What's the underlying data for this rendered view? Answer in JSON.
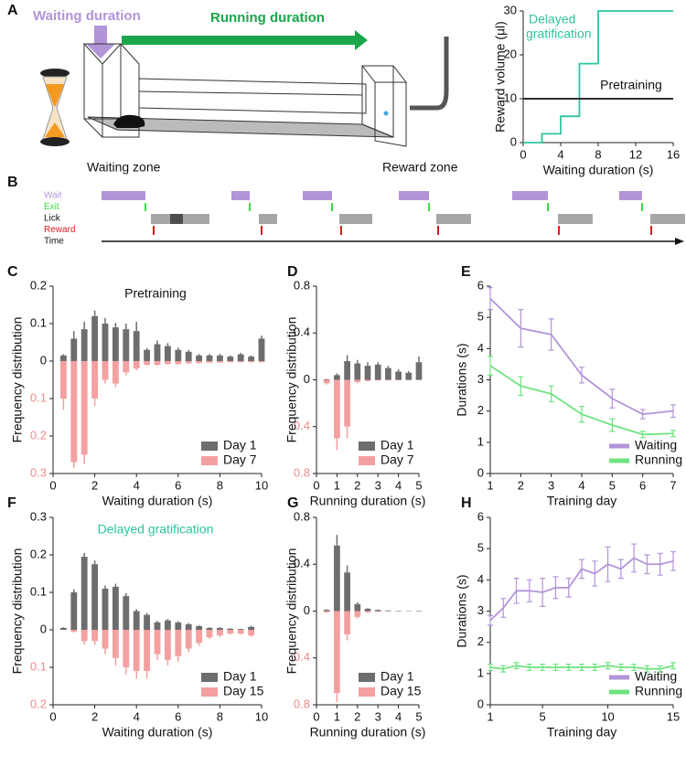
{
  "panel_labels": [
    "A",
    "B",
    "C",
    "D",
    "E",
    "F",
    "G",
    "H"
  ],
  "diagram": {
    "waiting_duration": "Waiting duration",
    "running_duration": "Running  duration",
    "waiting_zone": "Waiting zone",
    "reward_zone": "Reward zone"
  },
  "raster": {
    "labels": [
      "Wait",
      "Exit",
      "Lick",
      "Reward",
      "Time"
    ],
    "colors": [
      "#b294d8",
      "#3ddc4c",
      "#111111",
      "#d81e1e",
      "#111111"
    ]
  },
  "chart_data": [
    {
      "type": "line",
      "x_label": "Waiting duration (s)",
      "y_label": "Reward volume (µl)",
      "x": [
        0,
        2,
        2,
        4,
        4,
        6,
        6,
        8,
        8,
        16
      ],
      "series": [
        {
          "color": "#2ec4a0",
          "values": [
            0,
            0,
            2,
            2,
            6,
            6,
            18,
            18,
            30,
            30
          ]
        },
        {
          "color": "#111111",
          "values": [
            10,
            10,
            10,
            10,
            10,
            10,
            10,
            10,
            10,
            10
          ]
        }
      ],
      "annotations": [
        {
          "text": "Delayed",
          "color": "#2ec4a0"
        },
        {
          "text": "gratification",
          "color": "#2ec4a0"
        },
        {
          "text": "Pretraining",
          "color": "#111111"
        }
      ],
      "xlim": [
        0,
        16
      ],
      "ylim": [
        0,
        30
      ],
      "xticks": [
        0,
        4,
        8,
        12,
        16
      ],
      "yticks": [
        0,
        10,
        20,
        30
      ]
    },
    {
      "type": "bar",
      "x_label": "Waiting duration (s)",
      "y_label": "Frequency distribution",
      "annotations": [
        {
          "text": "Pretraining",
          "color": "#111111"
        }
      ],
      "x": [
        0.5,
        1,
        1.5,
        2,
        2.5,
        3,
        3.5,
        4,
        4.5,
        5,
        5.5,
        6,
        6.5,
        7,
        7.5,
        8,
        8.5,
        9,
        9.5,
        10
      ],
      "series": [
        {
          "name": "Day 1",
          "color": "#6d6d6d",
          "values": [
            0.015,
            0.06,
            0.085,
            0.12,
            0.1,
            0.09,
            0.085,
            0.08,
            0.03,
            0.045,
            0.04,
            0.03,
            0.025,
            0.015,
            0.015,
            0.015,
            0.012,
            0.018,
            0.012,
            0.06
          ],
          "errors": [
            0.004,
            0.02,
            0.02,
            0.015,
            0.015,
            0.012,
            0.015,
            0.025,
            0.005,
            0.01,
            0.008,
            0.006,
            0.005,
            0.004,
            0.004,
            0.004,
            0.003,
            0.004,
            0.003,
            0.008
          ]
        },
        {
          "name": "Day 7",
          "color": "#f4a0a0",
          "values": [
            -0.1,
            -0.27,
            -0.25,
            -0.1,
            -0.05,
            -0.06,
            -0.03,
            -0.02,
            -0.01,
            -0.01,
            -0.008,
            -0.008,
            -0.006,
            -0.005,
            -0.004,
            -0.004,
            -0.003,
            -0.003,
            -0.003,
            -0.003
          ],
          "errors": [
            0.03,
            0.015,
            0.025,
            0.02,
            0.01,
            0.01,
            0.008,
            0.005,
            0.003,
            0.003,
            0.002,
            0.002,
            0.002,
            0.002,
            0.001,
            0.001,
            0.001,
            0.001,
            0.001,
            0.001
          ]
        }
      ],
      "legend": "lower right",
      "negative_tick_color": "#f08a8a",
      "xlim": [
        0,
        10
      ],
      "ylim": [
        -0.3,
        0.2
      ],
      "xticks": [
        0,
        2,
        4,
        6,
        8,
        10
      ],
      "yticks": [
        0.2,
        0.1,
        0,
        {
          "value": -0.1,
          "label": "0.1"
        },
        {
          "value": -0.2,
          "label": "0.2"
        },
        {
          "value": -0.3,
          "label": "0.3"
        }
      ]
    },
    {
      "type": "bar",
      "x_label": "Running duration (s)",
      "y_label": "Frequency distribution",
      "x": [
        0.5,
        1,
        1.5,
        2,
        2.5,
        3,
        3.5,
        4,
        4.5,
        5
      ],
      "series": [
        {
          "name": "Day 1",
          "color": "#6d6d6d",
          "values": [
            0.005,
            0.04,
            0.16,
            0.14,
            0.12,
            0.13,
            0.1,
            0.07,
            0.06,
            0.15
          ],
          "errors": [
            0.003,
            0.015,
            0.05,
            0.03,
            0.03,
            0.02,
            0.02,
            0.02,
            0.015,
            0.05
          ]
        },
        {
          "name": "Day 7",
          "color": "#f4a0a0",
          "values": [
            -0.03,
            -0.5,
            -0.4,
            -0.02,
            -0.01,
            -0.005,
            -0.003,
            -0.003,
            -0.002,
            -0.002
          ],
          "errors": [
            0.01,
            0.1,
            0.1,
            0.01,
            0.005,
            0.003,
            0.002,
            0.002,
            0.001,
            0.001
          ]
        }
      ],
      "legend": "lower right",
      "negative_tick_color": "#f08a8a",
      "xlim": [
        0,
        5
      ],
      "ylim": [
        -0.8,
        0.8
      ],
      "xticks": [
        0,
        1,
        2,
        3,
        4,
        5
      ],
      "yticks": [
        0.8,
        0.4,
        0,
        {
          "value": -0.4,
          "label": "0.4"
        },
        {
          "value": -0.8,
          "label": "0.8"
        }
      ]
    },
    {
      "type": "line",
      "x_label": "Training day",
      "y_label": "Durations (s)",
      "x": [
        1,
        2,
        3,
        4,
        5,
        6,
        7
      ],
      "series": [
        {
          "name": "Waiting",
          "color": "#b294d8",
          "values": [
            5.6,
            4.65,
            4.45,
            3.15,
            2.4,
            1.9,
            2.0
          ],
          "errors": [
            0.35,
            0.6,
            0.5,
            0.25,
            0.3,
            0.15,
            0.2
          ]
        },
        {
          "name": "Running",
          "color": "#6ee37f",
          "values": [
            3.45,
            2.8,
            2.55,
            1.9,
            1.55,
            1.25,
            1.28
          ],
          "errors": [
            0.3,
            0.3,
            0.25,
            0.25,
            0.2,
            0.1,
            0.1
          ]
        }
      ],
      "legend": "lower right",
      "xlim": [
        1,
        7
      ],
      "ylim": [
        0,
        6
      ],
      "xticks": [
        1,
        2,
        3,
        4,
        5,
        6,
        7
      ],
      "yticks": [
        0,
        1,
        2,
        3,
        4,
        5,
        6
      ]
    },
    {
      "type": "bar",
      "x_label": "Waiting duration (s)",
      "y_label": "Frequency distribution",
      "annotations": [
        {
          "text": "Delayed gratification",
          "color": "#2ec4a0"
        }
      ],
      "x": [
        0.5,
        1,
        1.5,
        2,
        2.5,
        3,
        3.5,
        4,
        4.5,
        5,
        5.5,
        6,
        6.5,
        7,
        7.5,
        8,
        8.5,
        9,
        9.5
      ],
      "series": [
        {
          "name": "Day 1",
          "color": "#6d6d6d",
          "values": [
            0.005,
            0.1,
            0.195,
            0.175,
            0.11,
            0.115,
            0.09,
            0.05,
            0.04,
            0.02,
            0.025,
            0.02,
            0.015,
            0.01,
            0.005,
            0.005,
            0.003,
            0.002,
            0.008
          ],
          "errors": [
            0.002,
            0.008,
            0.01,
            0.01,
            0.008,
            0.008,
            0.008,
            0.005,
            0.005,
            0.004,
            0.004,
            0.003,
            0.003,
            0.002,
            0.002,
            0.002,
            0.001,
            0.001,
            0.003
          ]
        },
        {
          "name": "Day 15",
          "color": "#f4a0a0",
          "values": [
            0,
            -0.005,
            -0.03,
            -0.03,
            -0.05,
            -0.075,
            -0.1,
            -0.11,
            -0.11,
            -0.065,
            -0.08,
            -0.07,
            -0.05,
            -0.035,
            -0.02,
            -0.015,
            -0.01,
            -0.01,
            -0.015
          ],
          "errors": [
            0,
            0.003,
            0.01,
            0.01,
            0.015,
            0.02,
            0.02,
            0.02,
            0.02,
            0.015,
            0.015,
            0.015,
            0.01,
            0.008,
            0.005,
            0.004,
            0.003,
            0.003,
            0.004
          ]
        }
      ],
      "legend": "lower right",
      "negative_tick_color": "#f08a8a",
      "xlim": [
        0,
        10
      ],
      "ylim": [
        -0.2,
        0.3
      ],
      "xticks": [
        0,
        2,
        4,
        6,
        8,
        10
      ],
      "yticks": [
        0.3,
        0.2,
        0.1,
        0,
        {
          "value": -0.1,
          "label": "0.1"
        },
        {
          "value": -0.2,
          "label": "0.2"
        }
      ]
    },
    {
      "type": "bar",
      "x_label": "Running duration (s)",
      "y_label": "Frequency distribution",
      "x": [
        0.5,
        1,
        1.5,
        2,
        2.5,
        3,
        3.5,
        4,
        4.5,
        5
      ],
      "series": [
        {
          "name": "Day 1",
          "color": "#6d6d6d",
          "values": [
            0.01,
            0.56,
            0.33,
            0.06,
            0.02,
            0.01,
            0.005,
            0.003,
            0.002,
            0.003
          ],
          "errors": [
            0.005,
            0.09,
            0.06,
            0.015,
            0.005,
            0.003,
            0.002,
            0.001,
            0.001,
            0.001
          ]
        },
        {
          "name": "Day 15",
          "color": "#f4a0a0",
          "values": [
            -0.01,
            -0.7,
            -0.2,
            -0.05,
            -0.01,
            -0.005,
            -0.002,
            -0.002,
            -0.002,
            -0.002
          ],
          "errors": [
            0.005,
            0.08,
            0.05,
            0.015,
            0.005,
            0.002,
            0.001,
            0.001,
            0.001,
            0.001
          ]
        }
      ],
      "legend": "lower right",
      "negative_tick_color": "#f08a8a",
      "xlim": [
        0,
        5
      ],
      "ylim": [
        -0.8,
        0.8
      ],
      "xticks": [
        0,
        1,
        2,
        3,
        4,
        5
      ],
      "yticks": [
        0.8,
        0.4,
        0,
        {
          "value": -0.4,
          "label": "0.4"
        },
        {
          "value": -0.8,
          "label": "0.8"
        }
      ]
    },
    {
      "type": "line",
      "x_label": "Training day",
      "y_label": "Durations (s)",
      "x": [
        1,
        2,
        3,
        4,
        5,
        6,
        7,
        8,
        9,
        10,
        11,
        12,
        13,
        14,
        15
      ],
      "series": [
        {
          "name": "Waiting",
          "color": "#b294d8",
          "values": [
            2.7,
            3.1,
            3.65,
            3.65,
            3.6,
            3.75,
            3.75,
            4.35,
            4.2,
            4.5,
            4.35,
            4.7,
            4.5,
            4.5,
            4.6
          ],
          "errors": [
            0.15,
            0.3,
            0.4,
            0.35,
            0.45,
            0.35,
            0.3,
            0.3,
            0.4,
            0.55,
            0.3,
            0.45,
            0.3,
            0.35,
            0.3
          ]
        },
        {
          "name": "Running",
          "color": "#6ee37f",
          "values": [
            1.2,
            1.15,
            1.25,
            1.2,
            1.2,
            1.2,
            1.2,
            1.2,
            1.2,
            1.25,
            1.2,
            1.2,
            1.15,
            1.15,
            1.25
          ],
          "errors": [
            0.1,
            0.1,
            0.1,
            0.1,
            0.1,
            0.1,
            0.1,
            0.1,
            0.1,
            0.1,
            0.1,
            0.1,
            0.1,
            0.1,
            0.1
          ]
        }
      ],
      "legend": "lower right",
      "xlim": [
        1,
        15
      ],
      "ylim": [
        0,
        6
      ],
      "xticks": [
        1,
        5,
        10,
        15
      ],
      "yticks": [
        0,
        1,
        2,
        3,
        4,
        5,
        6
      ]
    }
  ]
}
